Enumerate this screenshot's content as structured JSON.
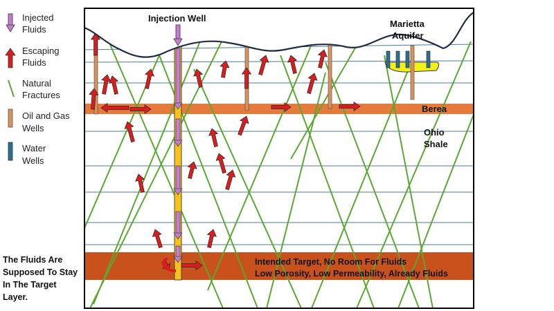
{
  "legend": {
    "injected": [
      "Injected",
      "Fluids"
    ],
    "escaping": [
      "Escaping",
      "Fluids"
    ],
    "fractures": [
      "Natural",
      "Fractures"
    ],
    "oil_gas": [
      "Oil and Gas",
      "Wells"
    ],
    "water": [
      "Water",
      "Wells"
    ]
  },
  "labels": {
    "injection_well": "Injection Well",
    "aquifer": [
      "Marietta",
      "Aquifer"
    ],
    "berea": "Berea",
    "shale": [
      "Ohio",
      "Shale"
    ],
    "target_line1": "Intended Target, No Room For Fluids",
    "target_line2": "Low Porosity, Low Permeability, Already Fluids"
  },
  "note": [
    "The Fluids Are",
    "Supposed To Stay",
    "In The Target",
    "Layer."
  ],
  "colors": {
    "injected": "#c77dcf",
    "escaping": "#d81e1e",
    "fracture": "#5aa832",
    "oil_gas_well": "#d9935a",
    "water_well": "#2e6f8e",
    "berea_layer": "#e57a3a",
    "target_layer": "#c9521c",
    "injection_well": "#f8c21c",
    "aquifer": "#f4f01a",
    "strata_line": "#4a7a9a"
  }
}
